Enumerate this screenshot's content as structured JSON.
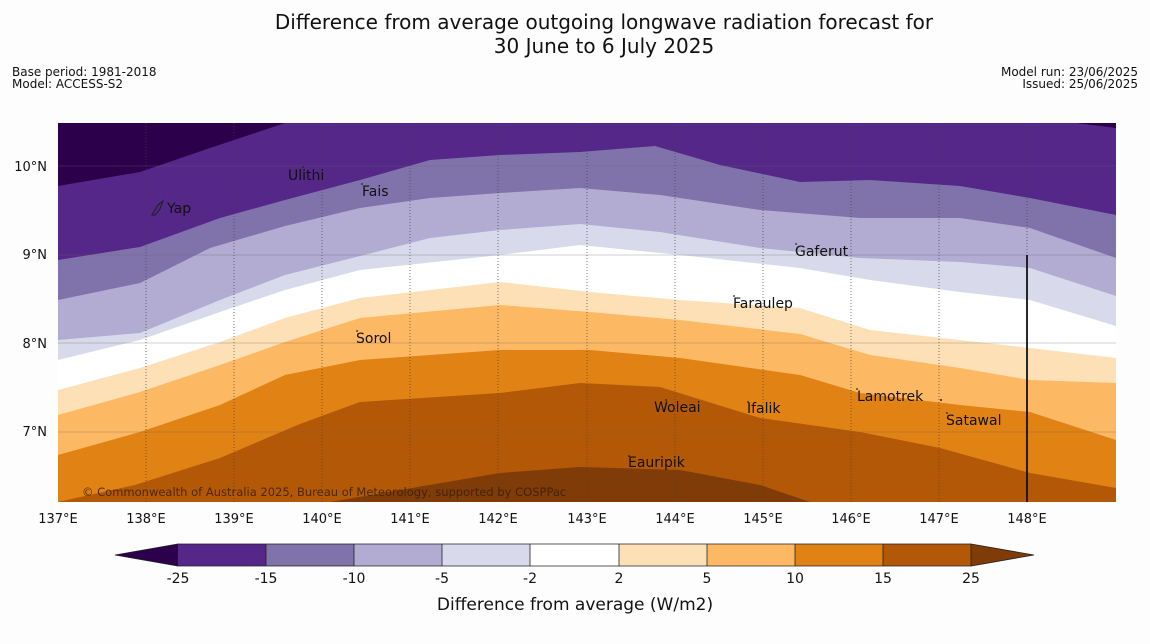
{
  "header": {
    "title_line1": "Difference from average outgoing longwave radiation forecast for",
    "title_line2": "30 June to 6 July 2025",
    "base_period": "Base period: 1981-2018",
    "model": "Model: ACCESS-S2",
    "model_run": "Model run: 23/06/2025",
    "issued": "Issued: 25/06/2025"
  },
  "map": {
    "lat_labels": [
      "10°N",
      "9°N",
      "8°N",
      "7°N"
    ],
    "lon_labels": [
      "137°E",
      "138°E",
      "139°E",
      "140°E",
      "141°E",
      "142°E",
      "143°E",
      "144°E",
      "145°E",
      "146°E",
      "147°E",
      "148°E"
    ],
    "places": [
      "Yap",
      "Ulithi",
      "Fais",
      "Gaferut",
      "Faraulep",
      "Sorol",
      "Lamotrek",
      "Woleai",
      "Ifalik",
      "Satawal",
      "Eauripik"
    ],
    "copyright": "© Commonwealth of Australia 2025, Bureau of Meteorology, supported by COSPPac"
  },
  "colorbar": {
    "tick_labels": [
      "-25",
      "-15",
      "-10",
      "-5",
      "-2",
      "2",
      "5",
      "10",
      "15",
      "25"
    ],
    "label": "Difference from average (W/m2)",
    "colors": {
      "lt_-25": "#2d004b",
      "-25_-15": "#542788",
      "-15_-10": "#8073ac",
      "-10_-5": "#b2abd2",
      "-5_-2": "#d8daeb",
      "-2_2": "#ffffff",
      "2_5": "#fee0b6",
      "5_10": "#fdb863",
      "10_15": "#e08214",
      "15_25": "#b35806",
      "gt_25": "#7f3b08"
    }
  }
}
